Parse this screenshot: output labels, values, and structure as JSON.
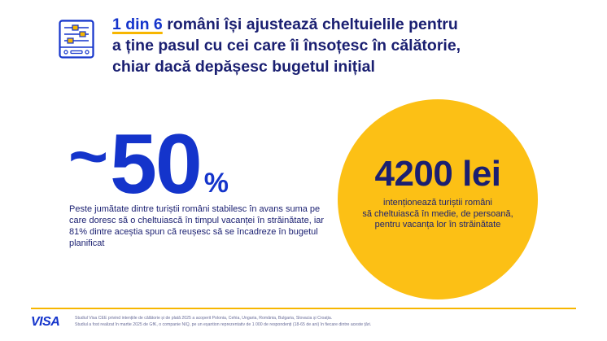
{
  "headline": {
    "stat": "1 din 6",
    "text_line1": " români își ajustează cheltuielile pentru",
    "text_line2": "a ține pasul cu cei care îi însoțesc în călătorie,",
    "text_line3": "chiar dacă depășesc bugetul inițial"
  },
  "left_stat": {
    "tilde": "~",
    "value": "50",
    "unit": "%",
    "description": "Peste jumătate dintre turiștii români stabilesc în avans suma pe care doresc să o cheltuiască în timpul vacanței în străinătate, iar 81% dintre aceștia spun că reușesc să se încadreze în bugetul planificat"
  },
  "right_stat": {
    "value": "4200 lei",
    "description_line1": "intenționează turiștii români",
    "description_line2": "să cheltuiască în medie, de persoană,",
    "description_line3": "pentru vacanța lor în străinătate"
  },
  "footer": {
    "logo": "VISA",
    "note_line1": "Studiul Visa CEE privind intențiile de călătorie și de plată 2025 a acoperit Polonia, Cehia, Ungaria, România, Bulgaria, Slovacia și Croația.",
    "note_line2": "Studiul a fost realizat  în martie 2025 de GfK, o companie NIQ, pe un eșantion reprezentativ de 1 000 de respondenți (18-65 de ani) în fiecare dintre aceste țări."
  },
  "icons": {
    "header": "sliders-panel-icon"
  },
  "colors": {
    "navy": "#1a1f71",
    "blue": "#1434cb",
    "yellow": "#fcc015",
    "gold": "#f7b600"
  }
}
